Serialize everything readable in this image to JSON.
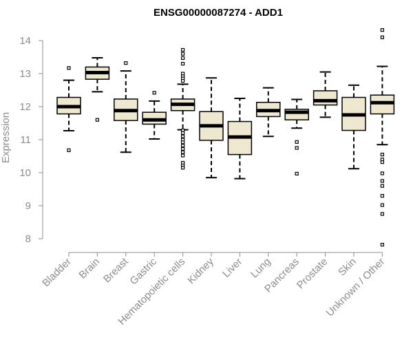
{
  "chart_data": {
    "type": "boxplot",
    "title": "ENSG00000087274 - ADD1",
    "ylabel": "Expression",
    "xlabel": "",
    "ylim": [
      7.7,
      14.5
    ],
    "yticks": [
      "8",
      "9",
      "10",
      "11",
      "12",
      "13",
      "14"
    ],
    "box_fill": "#efe8d0",
    "box_stroke": "#000000",
    "axis_color": "#8c8c8c",
    "categories": [
      "Bladder",
      "Brain",
      "Breast",
      "Gastric",
      "Hematopoietic cells",
      "Kidney",
      "Liver",
      "Lung",
      "Pancreas",
      "Prostate",
      "Skin",
      "Unknown / Other"
    ],
    "boxes": [
      {
        "name": "Bladder",
        "whisker_low": 11.27,
        "q1": 11.78,
        "median": 12.0,
        "q3": 12.28,
        "whisker_high": 12.8,
        "outliers": [
          13.17,
          10.68
        ]
      },
      {
        "name": "Brain",
        "whisker_low": 12.45,
        "q1": 12.83,
        "median": 13.03,
        "q3": 13.2,
        "whisker_high": 13.48,
        "outliers": [
          11.6
        ]
      },
      {
        "name": "Breast",
        "whisker_low": 10.62,
        "q1": 11.58,
        "median": 11.88,
        "q3": 12.23,
        "whisker_high": 13.08,
        "outliers": [
          13.32
        ]
      },
      {
        "name": "Gastric",
        "whisker_low": 11.02,
        "q1": 11.47,
        "median": 11.6,
        "q3": 11.83,
        "whisker_high": 12.17,
        "outliers": [
          12.42
        ]
      },
      {
        "name": "Hematopoietic cells",
        "whisker_low": 11.3,
        "q1": 11.88,
        "median": 12.07,
        "q3": 12.23,
        "whisker_high": 12.68,
        "outliers": [
          13.72,
          13.6,
          13.47,
          13.3,
          13.0,
          12.92,
          12.85,
          12.78,
          11.28,
          11.2,
          11.1,
          11.0,
          10.92,
          10.82,
          10.72,
          10.62,
          10.52,
          10.3,
          10.22,
          10.15
        ]
      },
      {
        "name": "Kidney",
        "whisker_low": 9.85,
        "q1": 10.98,
        "median": 11.42,
        "q3": 11.85,
        "whisker_high": 12.87,
        "outliers": []
      },
      {
        "name": "Liver",
        "whisker_low": 9.82,
        "q1": 10.55,
        "median": 11.08,
        "q3": 11.55,
        "whisker_high": 12.25,
        "outliers": []
      },
      {
        "name": "Lung",
        "whisker_low": 11.1,
        "q1": 11.7,
        "median": 11.88,
        "q3": 12.13,
        "whisker_high": 12.57,
        "outliers": []
      },
      {
        "name": "Pancreas",
        "whisker_low": 11.35,
        "q1": 11.6,
        "median": 11.83,
        "q3": 11.92,
        "whisker_high": 12.22,
        "outliers": [
          10.93,
          10.75,
          9.97
        ]
      },
      {
        "name": "Prostate",
        "whisker_low": 11.68,
        "q1": 12.05,
        "median": 12.18,
        "q3": 12.48,
        "whisker_high": 13.05,
        "outliers": []
      },
      {
        "name": "Skin",
        "whisker_low": 10.12,
        "q1": 11.28,
        "median": 11.75,
        "q3": 12.28,
        "whisker_high": 12.65,
        "outliers": []
      },
      {
        "name": "Unknown / Other",
        "whisker_low": 10.85,
        "q1": 11.78,
        "median": 12.12,
        "q3": 12.35,
        "whisker_high": 13.22,
        "outliers": [
          14.32,
          14.1,
          10.55,
          10.4,
          10.32,
          9.98,
          9.75,
          9.6,
          9.3,
          9.02,
          8.75,
          7.82
        ]
      }
    ]
  }
}
